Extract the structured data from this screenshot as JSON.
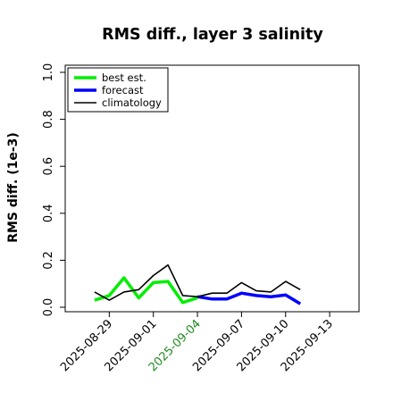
{
  "chart_data": {
    "type": "line",
    "title": "RMS diff., layer 3 salinity",
    "xlabel": "",
    "ylabel": "RMS diff. (1e-3)",
    "ylim": [
      0.0,
      1.0
    ],
    "yticks": [
      "0.0",
      "0.2",
      "0.4",
      "0.6",
      "0.8",
      "1.0"
    ],
    "xlim": [
      "2025-08-26",
      "2025-09-15"
    ],
    "xticks": [
      {
        "label": "2025-08-29",
        "color": "#000000"
      },
      {
        "label": "2025-09-01",
        "color": "#000000"
      },
      {
        "label": "2025-09-04",
        "color": "#228B22"
      },
      {
        "label": "2025-09-07",
        "color": "#000000"
      },
      {
        "label": "2025-09-10",
        "color": "#000000"
      },
      {
        "label": "2025-09-13",
        "color": "#000000"
      }
    ],
    "grid": false,
    "legend_position": "top-left",
    "series": [
      {
        "name": "best est.",
        "color": "#00ee00",
        "x": [
          "2025-08-28",
          "2025-08-29",
          "2025-08-30",
          "2025-08-31",
          "2025-09-01",
          "2025-09-02",
          "2025-09-03",
          "2025-09-04"
        ],
        "y": [
          0.03,
          0.05,
          0.125,
          0.04,
          0.105,
          0.11,
          0.02,
          0.04
        ]
      },
      {
        "name": "forecast",
        "color": "#0000ff",
        "x": [
          "2025-09-04",
          "2025-09-05",
          "2025-09-06",
          "2025-09-07",
          "2025-09-08",
          "2025-09-09",
          "2025-09-10",
          "2025-09-11"
        ],
        "y": [
          0.045,
          0.035,
          0.035,
          0.06,
          0.05,
          0.045,
          0.052,
          0.015
        ]
      },
      {
        "name": "climatology",
        "color": "#000000",
        "x": [
          "2025-08-28",
          "2025-08-29",
          "2025-08-30",
          "2025-08-31",
          "2025-09-01",
          "2025-09-02",
          "2025-09-03",
          "2025-09-04",
          "2025-09-05",
          "2025-09-06",
          "2025-09-07",
          "2025-09-08",
          "2025-09-09",
          "2025-09-10",
          "2025-09-11"
        ],
        "y": [
          0.065,
          0.03,
          0.065,
          0.075,
          0.135,
          0.18,
          0.05,
          0.045,
          0.06,
          0.06,
          0.105,
          0.07,
          0.065,
          0.11,
          0.075
        ]
      }
    ]
  }
}
